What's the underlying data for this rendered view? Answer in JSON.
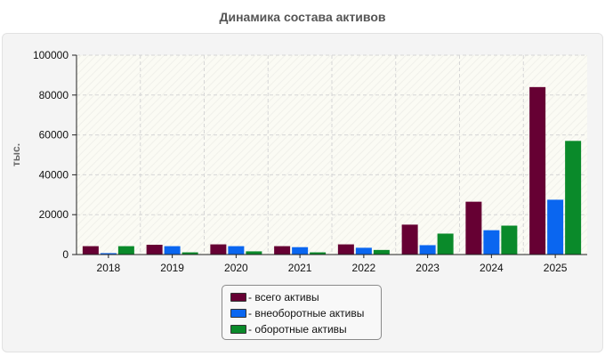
{
  "chart_data": {
    "type": "bar",
    "title": "Динамика состава активов",
    "ylabel": "тыс.",
    "xlabel": "",
    "categories": [
      "2018",
      "2019",
      "2020",
      "2021",
      "2022",
      "2023",
      "2024",
      "2025"
    ],
    "ylim": [
      0,
      100000
    ],
    "yticks": [
      0,
      20000,
      40000,
      60000,
      80000,
      100000
    ],
    "grid": true,
    "legend_position": "bottom-center",
    "series": [
      {
        "name": "- всего активы",
        "color": "#660033",
        "values": [
          4200,
          4900,
          5100,
          4200,
          5100,
          15000,
          26500,
          84000
        ]
      },
      {
        "name": "- внеоборотные активы",
        "color": "#0a66f0",
        "values": [
          700,
          4200,
          4200,
          3700,
          3400,
          4700,
          12200,
          27500
        ]
      },
      {
        "name": "- оборотные активы",
        "color": "#0a8a2a",
        "values": [
          4200,
          1100,
          1600,
          1100,
          2300,
          10500,
          14500,
          57000
        ]
      }
    ]
  }
}
